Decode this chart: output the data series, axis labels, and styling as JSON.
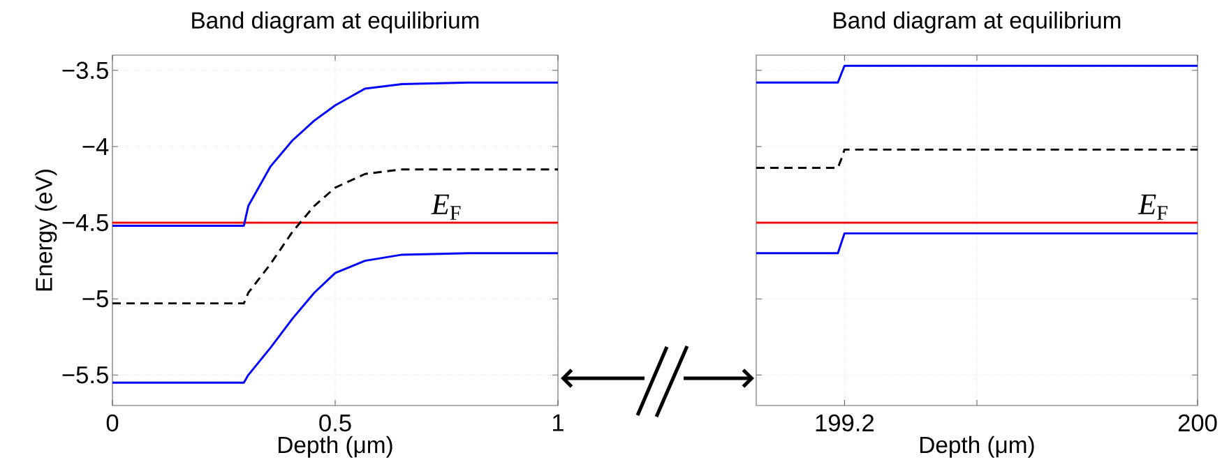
{
  "chart_data": [
    {
      "type": "line",
      "title": "Band diagram at equilibrium",
      "xlabel": "Depth (μm)",
      "ylabel": "Energy (eV)",
      "xlim": [
        0,
        1
      ],
      "ylim": [
        -5.7,
        -3.4
      ],
      "xticks": [
        0,
        0.5,
        1
      ],
      "yticks": [
        {
          "value": -5.5,
          "label": "−5.5"
        },
        {
          "value": -5,
          "label": "−5"
        },
        {
          "value": -4.5,
          "label": "−4.5"
        },
        {
          "value": -4,
          "label": "−4"
        },
        {
          "value": -3.5,
          "label": "−3.5"
        }
      ],
      "grid": true,
      "series": [
        {
          "color": "#0000ff",
          "line_style": "solid",
          "x": [
            0,
            0.295,
            0.305,
            0.355,
            0.404,
            0.453,
            0.5,
            0.567,
            0.65,
            0.8,
            1
          ],
          "values": [
            -4.52,
            -4.52,
            -4.39,
            -4.13,
            -3.96,
            -3.83,
            -3.73,
            -3.62,
            -3.59,
            -3.58,
            -3.58
          ]
        },
        {
          "color": "#000000",
          "line_style": "dashed",
          "x": [
            0,
            0.295,
            0.305,
            0.355,
            0.404,
            0.453,
            0.5,
            0.567,
            0.65,
            0.8,
            1
          ],
          "values": [
            -5.03,
            -5.03,
            -4.96,
            -4.77,
            -4.56,
            -4.39,
            -4.27,
            -4.18,
            -4.15,
            -4.15,
            -4.15
          ]
        },
        {
          "color": "#0000ff",
          "line_style": "solid",
          "x": [
            0,
            0.295,
            0.305,
            0.355,
            0.404,
            0.453,
            0.5,
            0.567,
            0.65,
            0.8,
            1
          ],
          "values": [
            -5.55,
            -5.55,
            -5.5,
            -5.32,
            -5.13,
            -4.96,
            -4.83,
            -4.75,
            -4.71,
            -4.7,
            -4.7
          ]
        }
      ],
      "ref_lines": [
        {
          "axis": "y",
          "value": -4.5,
          "label": "*E*$_{F}$",
          "color": "#ff0000"
        }
      ]
    },
    {
      "type": "line",
      "title": "Band diagram at equilibrium",
      "xlabel": "Depth (μm)",
      "xlim": [
        199,
        200
      ],
      "ylim": [
        -5.7,
        -3.4
      ],
      "xticks": [
        {
          "value": 199.2,
          "label": "199.2"
        },
        {
          "value": 199.5,
          "label": null
        },
        {
          "value": 200,
          "label": "200"
        }
      ],
      "yticks": [
        {
          "value": -5.5,
          "label": null
        },
        {
          "value": -5,
          "label": null
        },
        {
          "value": -4.5,
          "label": null
        },
        {
          "value": -4,
          "label": null
        },
        {
          "value": -3.5,
          "label": null
        }
      ],
      "grid": true,
      "tick_labels": "x",
      "series": [
        {
          "color": "#0000ff",
          "line_style": "solid",
          "x": [
            199,
            199.185,
            199.193,
            199.2,
            200
          ],
          "values": [
            -3.58,
            -3.58,
            -3.52,
            -3.47,
            -3.47
          ]
        },
        {
          "color": "#000000",
          "line_style": "dashed",
          "x": [
            199,
            199.185,
            199.193,
            199.2,
            200
          ],
          "values": [
            -4.14,
            -4.14,
            -4.08,
            -4.02,
            -4.02
          ]
        },
        {
          "color": "#0000ff",
          "line_style": "solid",
          "x": [
            199,
            199.185,
            199.193,
            199.2,
            200
          ],
          "values": [
            -4.7,
            -4.7,
            -4.63,
            -4.57,
            -4.57
          ]
        }
      ],
      "ref_lines": [
        {
          "axis": "y",
          "value": -4.5,
          "label": "*E*$_{F}$",
          "color": "#ff0000"
        }
      ]
    }
  ]
}
